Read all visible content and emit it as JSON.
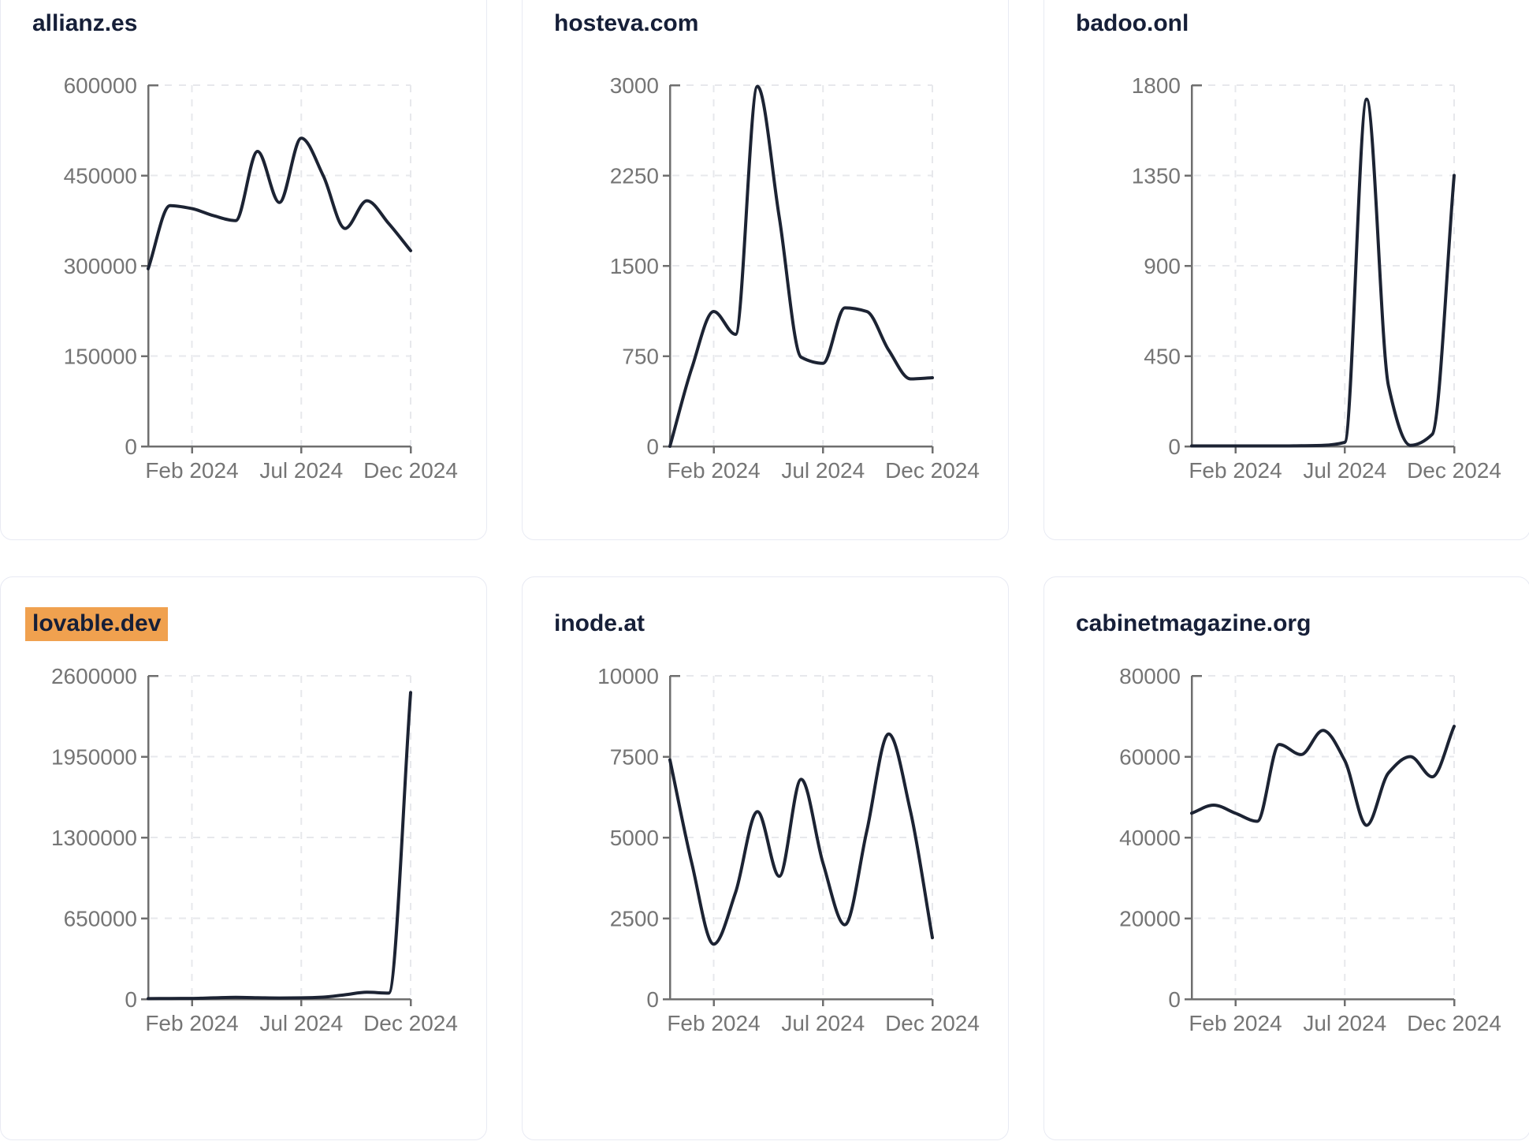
{
  "page": {
    "background": "#ffffff"
  },
  "theme": {
    "line_color": "#1c2333",
    "axis_color": "#6f6f6f",
    "tick_label_color": "#757575",
    "grid_color": "#e7e8ec",
    "title_color": "#161f38",
    "card_border_color": "#e8eaf3",
    "card_background": "#ffffff",
    "highlight_color": "#f0a14f"
  },
  "chart_data": [
    {
      "type": "line",
      "title": "allianz.es",
      "highlighted": false,
      "x": [
        "Dec 2023",
        "Jan 2024",
        "Feb 2024",
        "Mar 2024",
        "Apr 2024",
        "May 2024",
        "Jun 2024",
        "Jul 2024",
        "Aug 2024",
        "Sep 2024",
        "Oct 2024",
        "Nov 2024",
        "Dec 2024"
      ],
      "values": [
        295000,
        400000,
        395000,
        383000,
        375000,
        490000,
        405000,
        512000,
        450000,
        362000,
        408000,
        370000,
        325000
      ],
      "ylim": [
        0,
        600000
      ],
      "yticks": [
        0,
        150000,
        300000,
        450000,
        600000
      ],
      "xtick_labels": [
        "Feb 2024",
        "Jul 2024",
        "Dec 2024"
      ],
      "xtick_positions": [
        2,
        7,
        12
      ],
      "grid": "dashed",
      "legend": "none"
    },
    {
      "type": "line",
      "title": "hosteva.com",
      "highlighted": false,
      "x": [
        "Dec 2023",
        "Jan 2024",
        "Feb 2024",
        "Mar 2024",
        "Apr 2024",
        "May 2024",
        "Jun 2024",
        "Jul 2024",
        "Aug 2024",
        "Sep 2024",
        "Oct 2024",
        "Nov 2024",
        "Dec 2024"
      ],
      "values": [
        0,
        650,
        1120,
        930,
        2990,
        1900,
        740,
        690,
        1150,
        1120,
        800,
        560,
        570
      ],
      "ylim": [
        0,
        3000
      ],
      "yticks": [
        0,
        750,
        1500,
        2250,
        3000
      ],
      "xtick_labels": [
        "Feb 2024",
        "Jul 2024",
        "Dec 2024"
      ],
      "xtick_positions": [
        2,
        7,
        12
      ],
      "grid": "dashed",
      "legend": "none"
    },
    {
      "type": "line",
      "title": "badoo.onl",
      "highlighted": false,
      "x": [
        "Dec 2023",
        "Jan 2024",
        "Feb 2024",
        "Mar 2024",
        "Apr 2024",
        "May 2024",
        "Jun 2024",
        "Jul 2024",
        "Aug 2024",
        "Sep 2024",
        "Oct 2024",
        "Nov 2024",
        "Dec 2024"
      ],
      "values": [
        2,
        2,
        2,
        2,
        2,
        3,
        5,
        20,
        1730,
        300,
        5,
        60,
        1350
      ],
      "ylim": [
        0,
        1800
      ],
      "yticks": [
        0,
        450,
        900,
        1350,
        1800
      ],
      "xtick_labels": [
        "Feb 2024",
        "Jul 2024",
        "Dec 2024"
      ],
      "xtick_positions": [
        2,
        7,
        12
      ],
      "grid": "dashed",
      "legend": "none"
    },
    {
      "type": "line",
      "title": "lovable.dev",
      "highlighted": true,
      "x": [
        "Dec 2023",
        "Jan 2024",
        "Feb 2024",
        "Mar 2024",
        "Apr 2024",
        "May 2024",
        "Jun 2024",
        "Jul 2024",
        "Aug 2024",
        "Sep 2024",
        "Oct 2024",
        "Nov 2024",
        "Dec 2024"
      ],
      "values": [
        4000,
        5000,
        6000,
        10000,
        14000,
        11000,
        9000,
        10000,
        16000,
        35000,
        55000,
        48000,
        2465000
      ],
      "ylim": [
        0,
        2600000
      ],
      "yticks": [
        0,
        650000,
        1300000,
        1950000,
        2600000
      ],
      "xtick_labels": [
        "Feb 2024",
        "Jul 2024",
        "Dec 2024"
      ],
      "xtick_positions": [
        2,
        7,
        12
      ],
      "grid": "dashed",
      "legend": "none"
    },
    {
      "type": "line",
      "title": "inode.at",
      "highlighted": false,
      "x": [
        "Dec 2023",
        "Jan 2024",
        "Feb 2024",
        "Mar 2024",
        "Apr 2024",
        "May 2024",
        "Jun 2024",
        "Jul 2024",
        "Aug 2024",
        "Sep 2024",
        "Oct 2024",
        "Nov 2024",
        "Dec 2024"
      ],
      "values": [
        7400,
        4200,
        1700,
        3300,
        5800,
        3800,
        6800,
        4200,
        2300,
        5200,
        8200,
        5800,
        1900
      ],
      "ylim": [
        0,
        10000
      ],
      "yticks": [
        0,
        2500,
        5000,
        7500,
        10000
      ],
      "xtick_labels": [
        "Feb 2024",
        "Jul 2024",
        "Dec 2024"
      ],
      "xtick_positions": [
        2,
        7,
        12
      ],
      "grid": "dashed",
      "legend": "none"
    },
    {
      "type": "line",
      "title": "cabinetmagazine.org",
      "highlighted": false,
      "x": [
        "Dec 2023",
        "Jan 2024",
        "Feb 2024",
        "Mar 2024",
        "Apr 2024",
        "May 2024",
        "Jun 2024",
        "Jul 2024",
        "Aug 2024",
        "Sep 2024",
        "Oct 2024",
        "Nov 2024",
        "Dec 2024"
      ],
      "values": [
        46000,
        48000,
        46000,
        44000,
        63000,
        60500,
        66500,
        59000,
        43000,
        56000,
        60000,
        55000,
        67500
      ],
      "ylim": [
        0,
        80000
      ],
      "yticks": [
        0,
        20000,
        40000,
        60000,
        80000
      ],
      "xtick_labels": [
        "Feb 2024",
        "Jul 2024",
        "Dec 2024"
      ],
      "xtick_positions": [
        2,
        7,
        12
      ],
      "grid": "dashed",
      "legend": "none"
    }
  ]
}
